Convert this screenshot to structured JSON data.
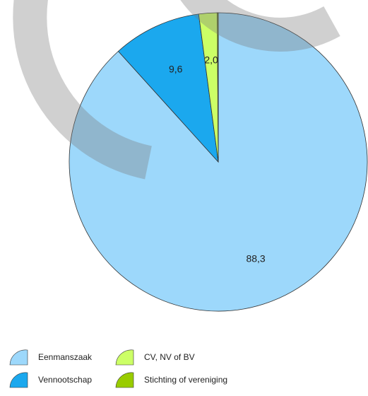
{
  "chart_data": {
    "type": "pie",
    "categories": [
      "Eenmanszaak",
      "Vennootschap",
      "CV, NV of BV",
      "Stichting of vereniging"
    ],
    "values": [
      88.3,
      9.6,
      2.0,
      0.1
    ],
    "value_labels": [
      "88,3",
      "9,6",
      "2,0",
      null
    ],
    "colors": [
      "#9dd8fb",
      "#1ba8ee",
      "#ccff66",
      "#99cc00"
    ],
    "legend": "bottom"
  }
}
